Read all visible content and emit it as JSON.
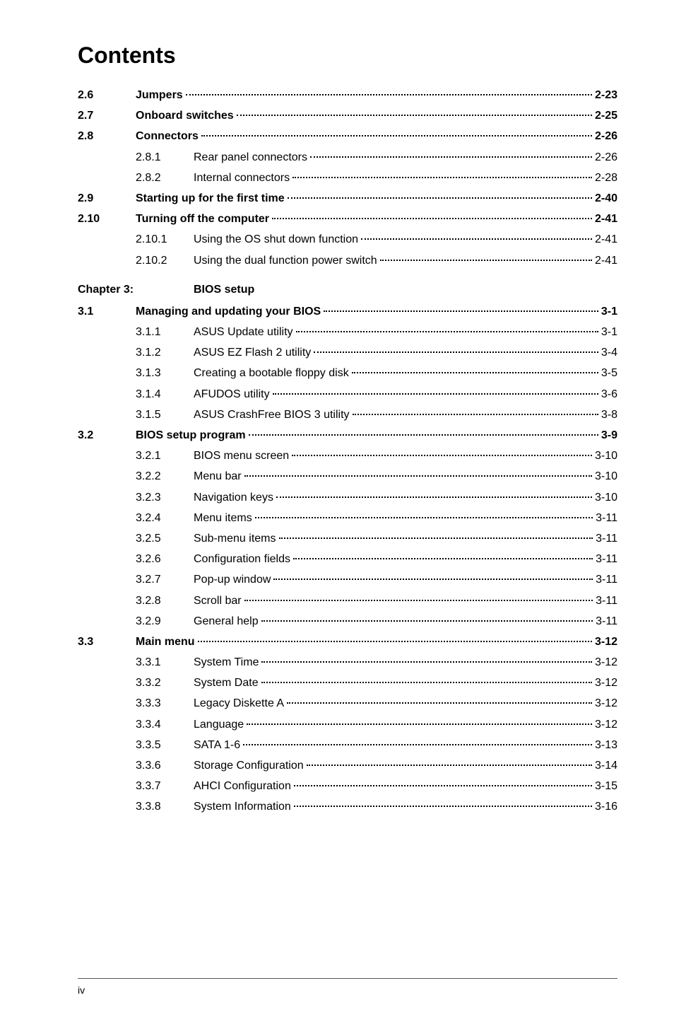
{
  "title": "Contents",
  "chapter": {
    "num": "Chapter 3:",
    "title": "BIOS setup"
  },
  "footer": "iv",
  "rows": [
    {
      "level": 1,
      "num": "2.6",
      "label": "Jumpers",
      "page": "2-23",
      "bold": true
    },
    {
      "level": 1,
      "num": "2.7",
      "label": "Onboard switches",
      "page": "2-25",
      "bold": true
    },
    {
      "level": 1,
      "num": "2.8",
      "label": "Connectors",
      "page": "2-26",
      "bold": true
    },
    {
      "level": 2,
      "num": "2.8.1",
      "label": "Rear panel connectors",
      "page": "2-26",
      "bold": false
    },
    {
      "level": 2,
      "num": "2.8.2",
      "label": "Internal connectors",
      "page": "2-28",
      "bold": false
    },
    {
      "level": 1,
      "num": "2.9",
      "label": "Starting up for the first time",
      "page": "2-40",
      "bold": true
    },
    {
      "level": 1,
      "num": "2.10",
      "label": "Turning off the computer",
      "page": "2-41",
      "bold": true
    },
    {
      "level": 2,
      "num": "2.10.1",
      "label": "Using the OS shut down function",
      "page": "2-41",
      "bold": false
    },
    {
      "level": 2,
      "num": "2.10.2",
      "label": "Using the dual function power switch",
      "page": "2-41",
      "bold": false
    },
    {
      "chapter": true
    },
    {
      "level": 1,
      "num": "3.1",
      "label": "Managing and updating your BIOS",
      "page": "3-1",
      "bold": true
    },
    {
      "level": 2,
      "num": "3.1.1",
      "label": "ASUS Update utility",
      "page": "3-1",
      "bold": false
    },
    {
      "level": 2,
      "num": "3.1.2",
      "label": "ASUS EZ Flash 2 utility",
      "page": "3-4",
      "bold": false
    },
    {
      "level": 2,
      "num": "3.1.3",
      "label": "Creating a bootable floppy disk",
      "page": "3-5",
      "bold": false
    },
    {
      "level": 2,
      "num": "3.1.4",
      "label": "AFUDOS utility",
      "page": "3-6",
      "bold": false
    },
    {
      "level": 2,
      "num": "3.1.5",
      "label": "ASUS CrashFree BIOS 3 utility",
      "page": "3-8",
      "bold": false
    },
    {
      "level": 1,
      "num": "3.2",
      "label": "BIOS setup program",
      "page": "3-9",
      "bold": true
    },
    {
      "level": 2,
      "num": "3.2.1",
      "label": "BIOS menu screen",
      "page": "3-10",
      "bold": false
    },
    {
      "level": 2,
      "num": "3.2.2",
      "label": "Menu bar",
      "page": "3-10",
      "bold": false
    },
    {
      "level": 2,
      "num": "3.2.3",
      "label": "Navigation keys",
      "page": "3-10",
      "bold": false
    },
    {
      "level": 2,
      "num": "3.2.4",
      "label": "Menu items",
      "page": "3-11",
      "bold": false
    },
    {
      "level": 2,
      "num": "3.2.5",
      "label": "Sub-menu items",
      "page": "3-11",
      "bold": false
    },
    {
      "level": 2,
      "num": "3.2.6",
      "label": "Configuration fields",
      "page": "3-11",
      "bold": false
    },
    {
      "level": 2,
      "num": "3.2.7",
      "label": "Pop-up window",
      "page": "3-11",
      "bold": false
    },
    {
      "level": 2,
      "num": "3.2.8",
      "label": "Scroll bar",
      "page": "3-11",
      "bold": false
    },
    {
      "level": 2,
      "num": "3.2.9",
      "label": "General help",
      "page": "3-11",
      "bold": false
    },
    {
      "level": 1,
      "num": "3.3",
      "label": "Main menu",
      "page": "3-12",
      "bold": true
    },
    {
      "level": 2,
      "num": "3.3.1",
      "label": "System Time",
      "page": "3-12",
      "bold": false
    },
    {
      "level": 2,
      "num": "3.3.2",
      "label": "System Date",
      "page": "3-12",
      "bold": false
    },
    {
      "level": 2,
      "num": "3.3.3",
      "label": "Legacy Diskette A",
      "page": "3-12",
      "bold": false
    },
    {
      "level": 2,
      "num": "3.3.4",
      "label": "Language",
      "page": "3-12",
      "bold": false
    },
    {
      "level": 2,
      "num": "3.3.5",
      "label": "SATA 1-6",
      "page": "3-13",
      "bold": false
    },
    {
      "level": 2,
      "num": "3.3.6",
      "label": "Storage Configuration",
      "page": "3-14",
      "bold": false
    },
    {
      "level": 2,
      "num": "3.3.7",
      "label": "AHCI Configuration",
      "page": "3-15",
      "bold": false
    },
    {
      "level": 2,
      "num": "3.3.8",
      "label": "System Information",
      "page": "3-16",
      "bold": false
    }
  ]
}
